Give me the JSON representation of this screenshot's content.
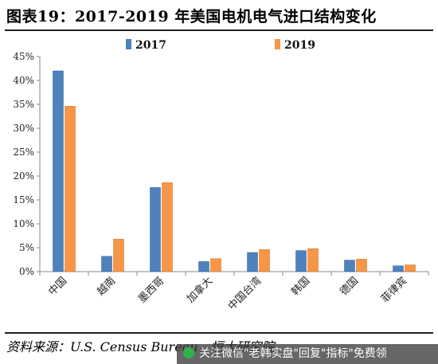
{
  "title": "图表19：2017-2019 年美国电机电气进口结构变化",
  "source": "资料来源：U.S. Census Bureau，恒大研究院",
  "watermark": "关注微信\"老韩实盘\"回复\"指标\"免费领",
  "colors": {
    "s2017": "#4f81bd",
    "s2019": "#f79646"
  },
  "chart_data": {
    "type": "bar",
    "categories": [
      "中国",
      "越南",
      "墨西哥",
      "加拿大",
      "中国台湾",
      "韩国",
      "德国",
      "菲律宾"
    ],
    "series": [
      {
        "name": "2017",
        "values": [
          42.0,
          3.2,
          17.6,
          2.1,
          4.0,
          4.4,
          2.4,
          1.2
        ]
      },
      {
        "name": "2019",
        "values": [
          34.6,
          6.8,
          18.6,
          2.7,
          4.6,
          4.8,
          2.6,
          1.4
        ]
      }
    ],
    "ylim": [
      0,
      45
    ],
    "yticks": [
      "0%",
      "5%",
      "10%",
      "15%",
      "20%",
      "25%",
      "30%",
      "35%",
      "40%",
      "45%"
    ],
    "legend": "top-center"
  }
}
